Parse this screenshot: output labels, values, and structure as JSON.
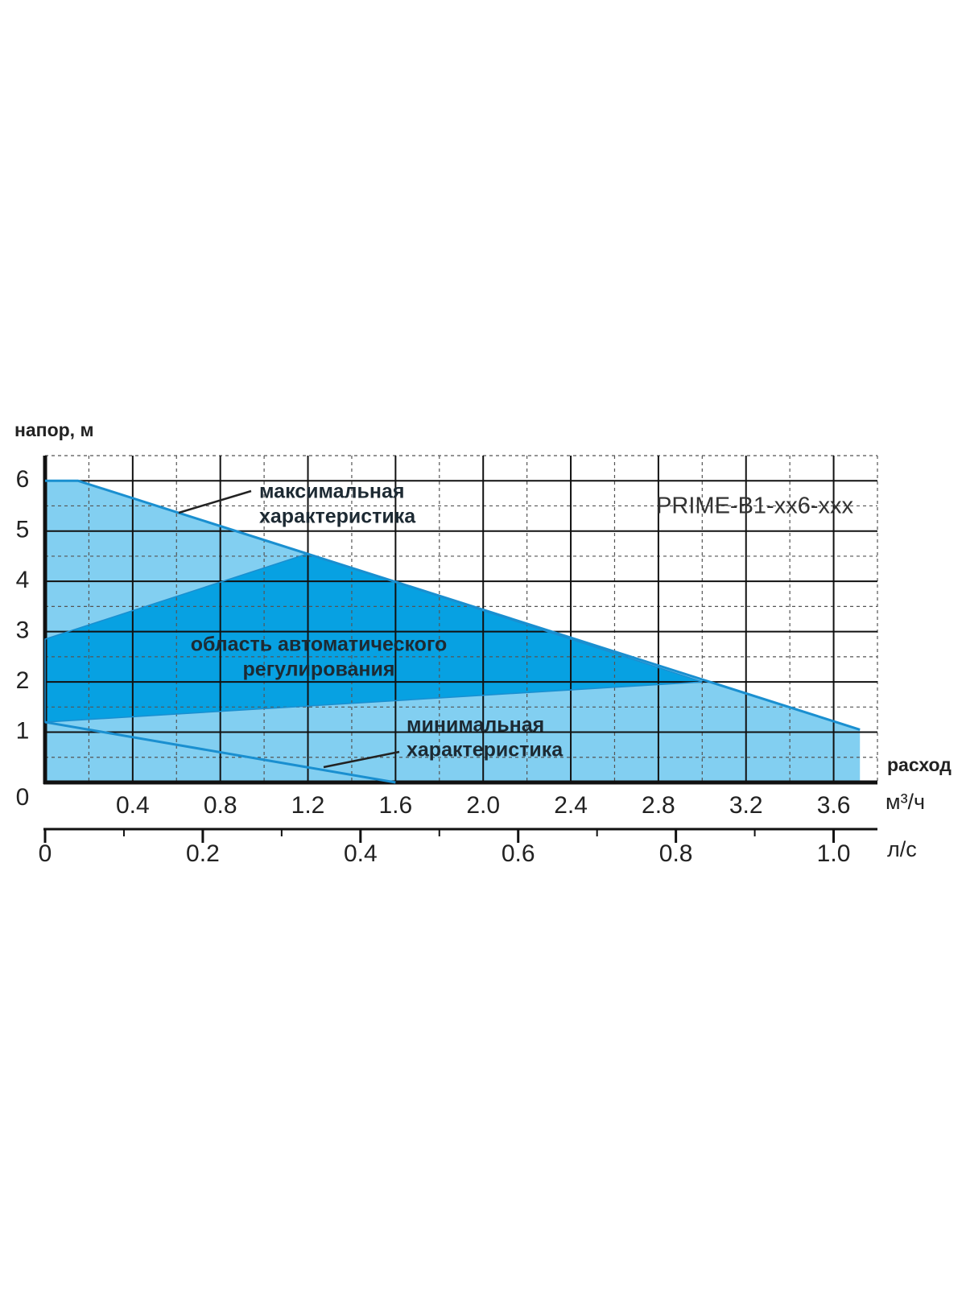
{
  "chart_data": {
    "type": "area",
    "ylabel": "напор, м",
    "xlabel": "расход",
    "xunit": "м³/ч",
    "x2unit": "л/с",
    "model": "PRIME-B1-xx6-xxx",
    "xlim": [
      0,
      3.8
    ],
    "ylim": [
      0,
      6.5
    ],
    "x2lim": [
      0,
      1.0556
    ],
    "xticks": [
      0.4,
      0.8,
      1.2,
      1.6,
      {
        "value": 2,
        "label": "2.0"
      },
      2.4,
      2.8,
      3.2,
      3.6
    ],
    "yticks": [
      0,
      1,
      2,
      3,
      4,
      5,
      6
    ],
    "minor_xticks": [
      0.2,
      0.6,
      1,
      1.4,
      1.8,
      2.2,
      2.6,
      3,
      3.4,
      3.8
    ],
    "minor_yticks": [
      0.5,
      1.5,
      2.5,
      3.5,
      4.5,
      5.5,
      6.5
    ],
    "x2ticks": [
      0,
      0.2,
      0.4,
      0.6,
      0.8,
      {
        "value": 1,
        "label": "1.0"
      }
    ],
    "x2minorticks": [
      0.1,
      0.3,
      0.5,
      0.7,
      0.9
    ],
    "grid": true,
    "series": [
      {
        "x": [
          0,
          0.15,
          3.72
        ],
        "values": [
          6,
          6,
          1.05
        ],
        "color": "#1a8fd0",
        "fill": "#82cff1"
      },
      {
        "x": [
          0,
          1.2,
          3.0,
          0
        ],
        "values": [
          2.85,
          4.55,
          2.0,
          1.2
        ],
        "color": "#1a8fd0",
        "fill": "#009ee0"
      },
      {
        "x": [
          0,
          1.6
        ],
        "values": [
          1.2,
          0
        ],
        "color": "#1a8fd0"
      }
    ],
    "annotations": [
      {
        "lines": [
          "максимальная",
          "характеристика"
        ]
      },
      {
        "lines": [
          "область автоматического",
          "регулирования"
        ]
      },
      {
        "lines": [
          "минимальная",
          "характеристика"
        ]
      }
    ]
  }
}
